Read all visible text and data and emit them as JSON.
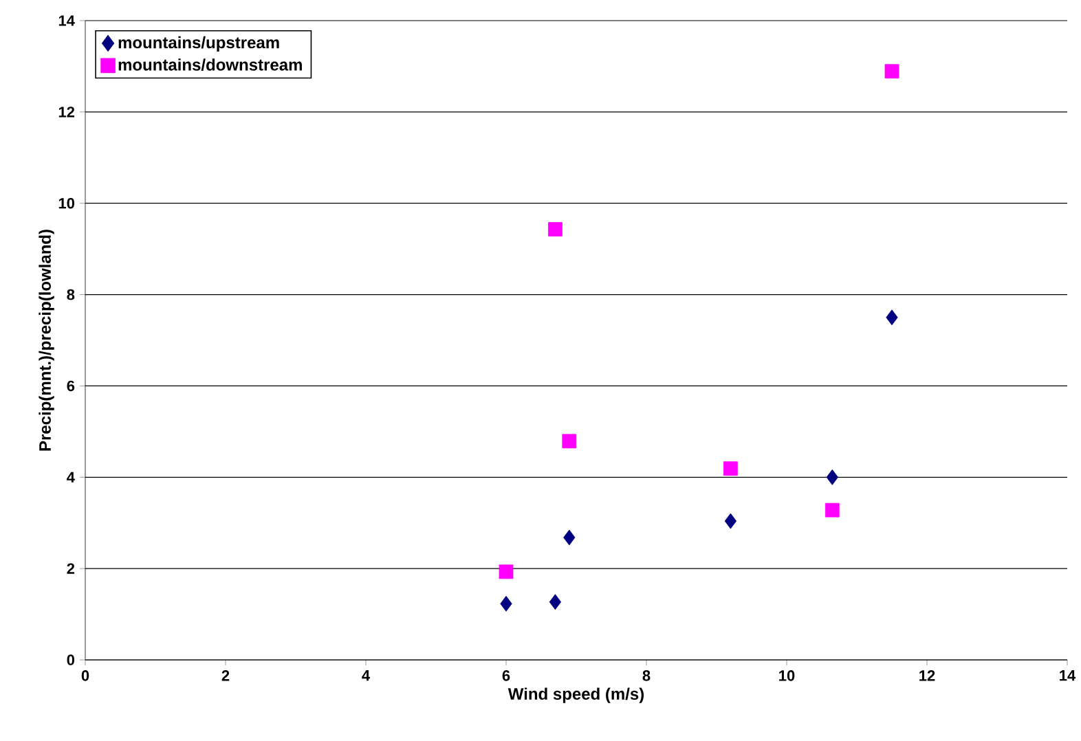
{
  "chart_data": {
    "type": "scatter",
    "xlabel": "Wind speed (m/s)",
    "ylabel": "Precip(mnt.)/precip(lowland)",
    "xlim": [
      0,
      14
    ],
    "ylim": [
      0,
      14
    ],
    "xticks": [
      0,
      2,
      4,
      6,
      8,
      10,
      12,
      14
    ],
    "yticks": [
      0,
      2,
      4,
      6,
      8,
      10,
      12,
      14
    ],
    "grid": "y",
    "legend": "top left",
    "series": [
      {
        "name": "mountains/upstream",
        "color": "#000080",
        "marker": "diamond",
        "x": [
          6.0,
          6.7,
          6.9,
          9.2,
          10.65,
          11.5
        ],
        "values": [
          1.23,
          1.27,
          2.68,
          3.04,
          4.0,
          7.5
        ]
      },
      {
        "name": "mountains/downstream",
        "color": "#ff00ff",
        "marker": "square",
        "x": [
          6.0,
          6.7,
          6.9,
          9.2,
          10.65,
          11.5
        ],
        "values": [
          1.93,
          9.43,
          4.79,
          4.19,
          3.28,
          12.89
        ]
      }
    ]
  }
}
